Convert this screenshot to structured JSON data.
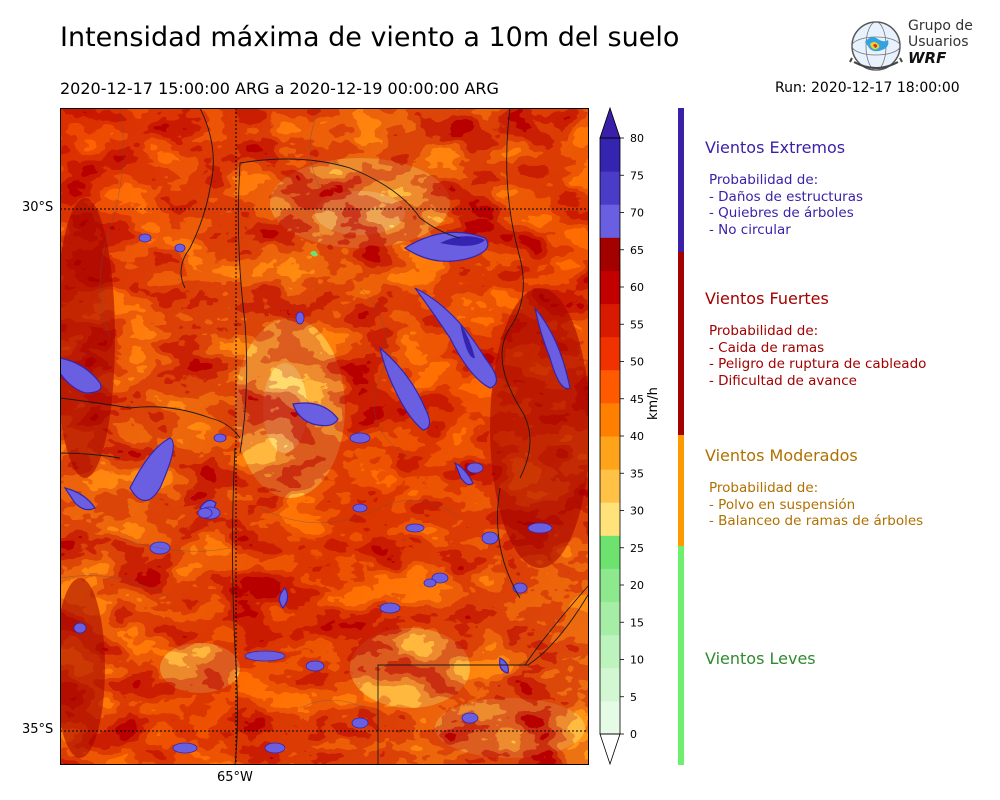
{
  "header": {
    "title": "Intensidad máxima de viento a 10m del suelo",
    "period": "2020-12-17 15:00:00 ARG  a  2020-12-19 00:00:00 ARG",
    "run": "Run: 2020-12-17 18:00:00"
  },
  "logo": {
    "line1": "Grupo de",
    "line2": "Usuarios",
    "line3": "WRF"
  },
  "map": {
    "lat_labels": [
      "30°S",
      "35°S"
    ],
    "lon_labels": [
      "65°W"
    ]
  },
  "colorbar": {
    "unit": "km/h",
    "ticks": [
      "0",
      "5",
      "10",
      "15",
      "20",
      "25",
      "30",
      "35",
      "40",
      "45",
      "50",
      "55",
      "60",
      "65",
      "70",
      "75",
      "80"
    ],
    "colors": [
      "#e6fbe6",
      "#d3f7d3",
      "#bdf3bd",
      "#a6eea6",
      "#8ee88e",
      "#6ee26e",
      "#ffe37a",
      "#ffc247",
      "#ffa31a",
      "#ff8000",
      "#ff5a00",
      "#f03200",
      "#d81a00",
      "#c20000",
      "#a30000",
      "#6a5fe0",
      "#4b3cc8",
      "#3524b0"
    ],
    "cap_top": "#3a1fa8",
    "cap_bottom": "#ffffff"
  },
  "categories": [
    {
      "title": "Vientos Extremos",
      "color": "#3a1fa8",
      "lines": [
        "Probabilidad de:",
        "- Daños de estructuras",
        "- Quiebres de árboles",
        "- No circular"
      ]
    },
    {
      "title": "Vientos Fuertes",
      "color": "#a30000",
      "lines": [
        "Probabilidad de:",
        "- Caida de ramas",
        "- Peligro de ruptura de cableado",
        "- Dificultad de avance"
      ]
    },
    {
      "title": "Vientos Moderados",
      "color": "#b07000",
      "lines": [
        "Probabilidad de:",
        "- Polvo en suspensión",
        "- Balanceo de ramas de árboles"
      ]
    },
    {
      "title": "Vientos Leves",
      "color": "#2e8b2e",
      "lines": []
    }
  ],
  "category_bar_colors": [
    "#3a1fa8",
    "#a30000",
    "#ff9900",
    "#6ef06e"
  ]
}
